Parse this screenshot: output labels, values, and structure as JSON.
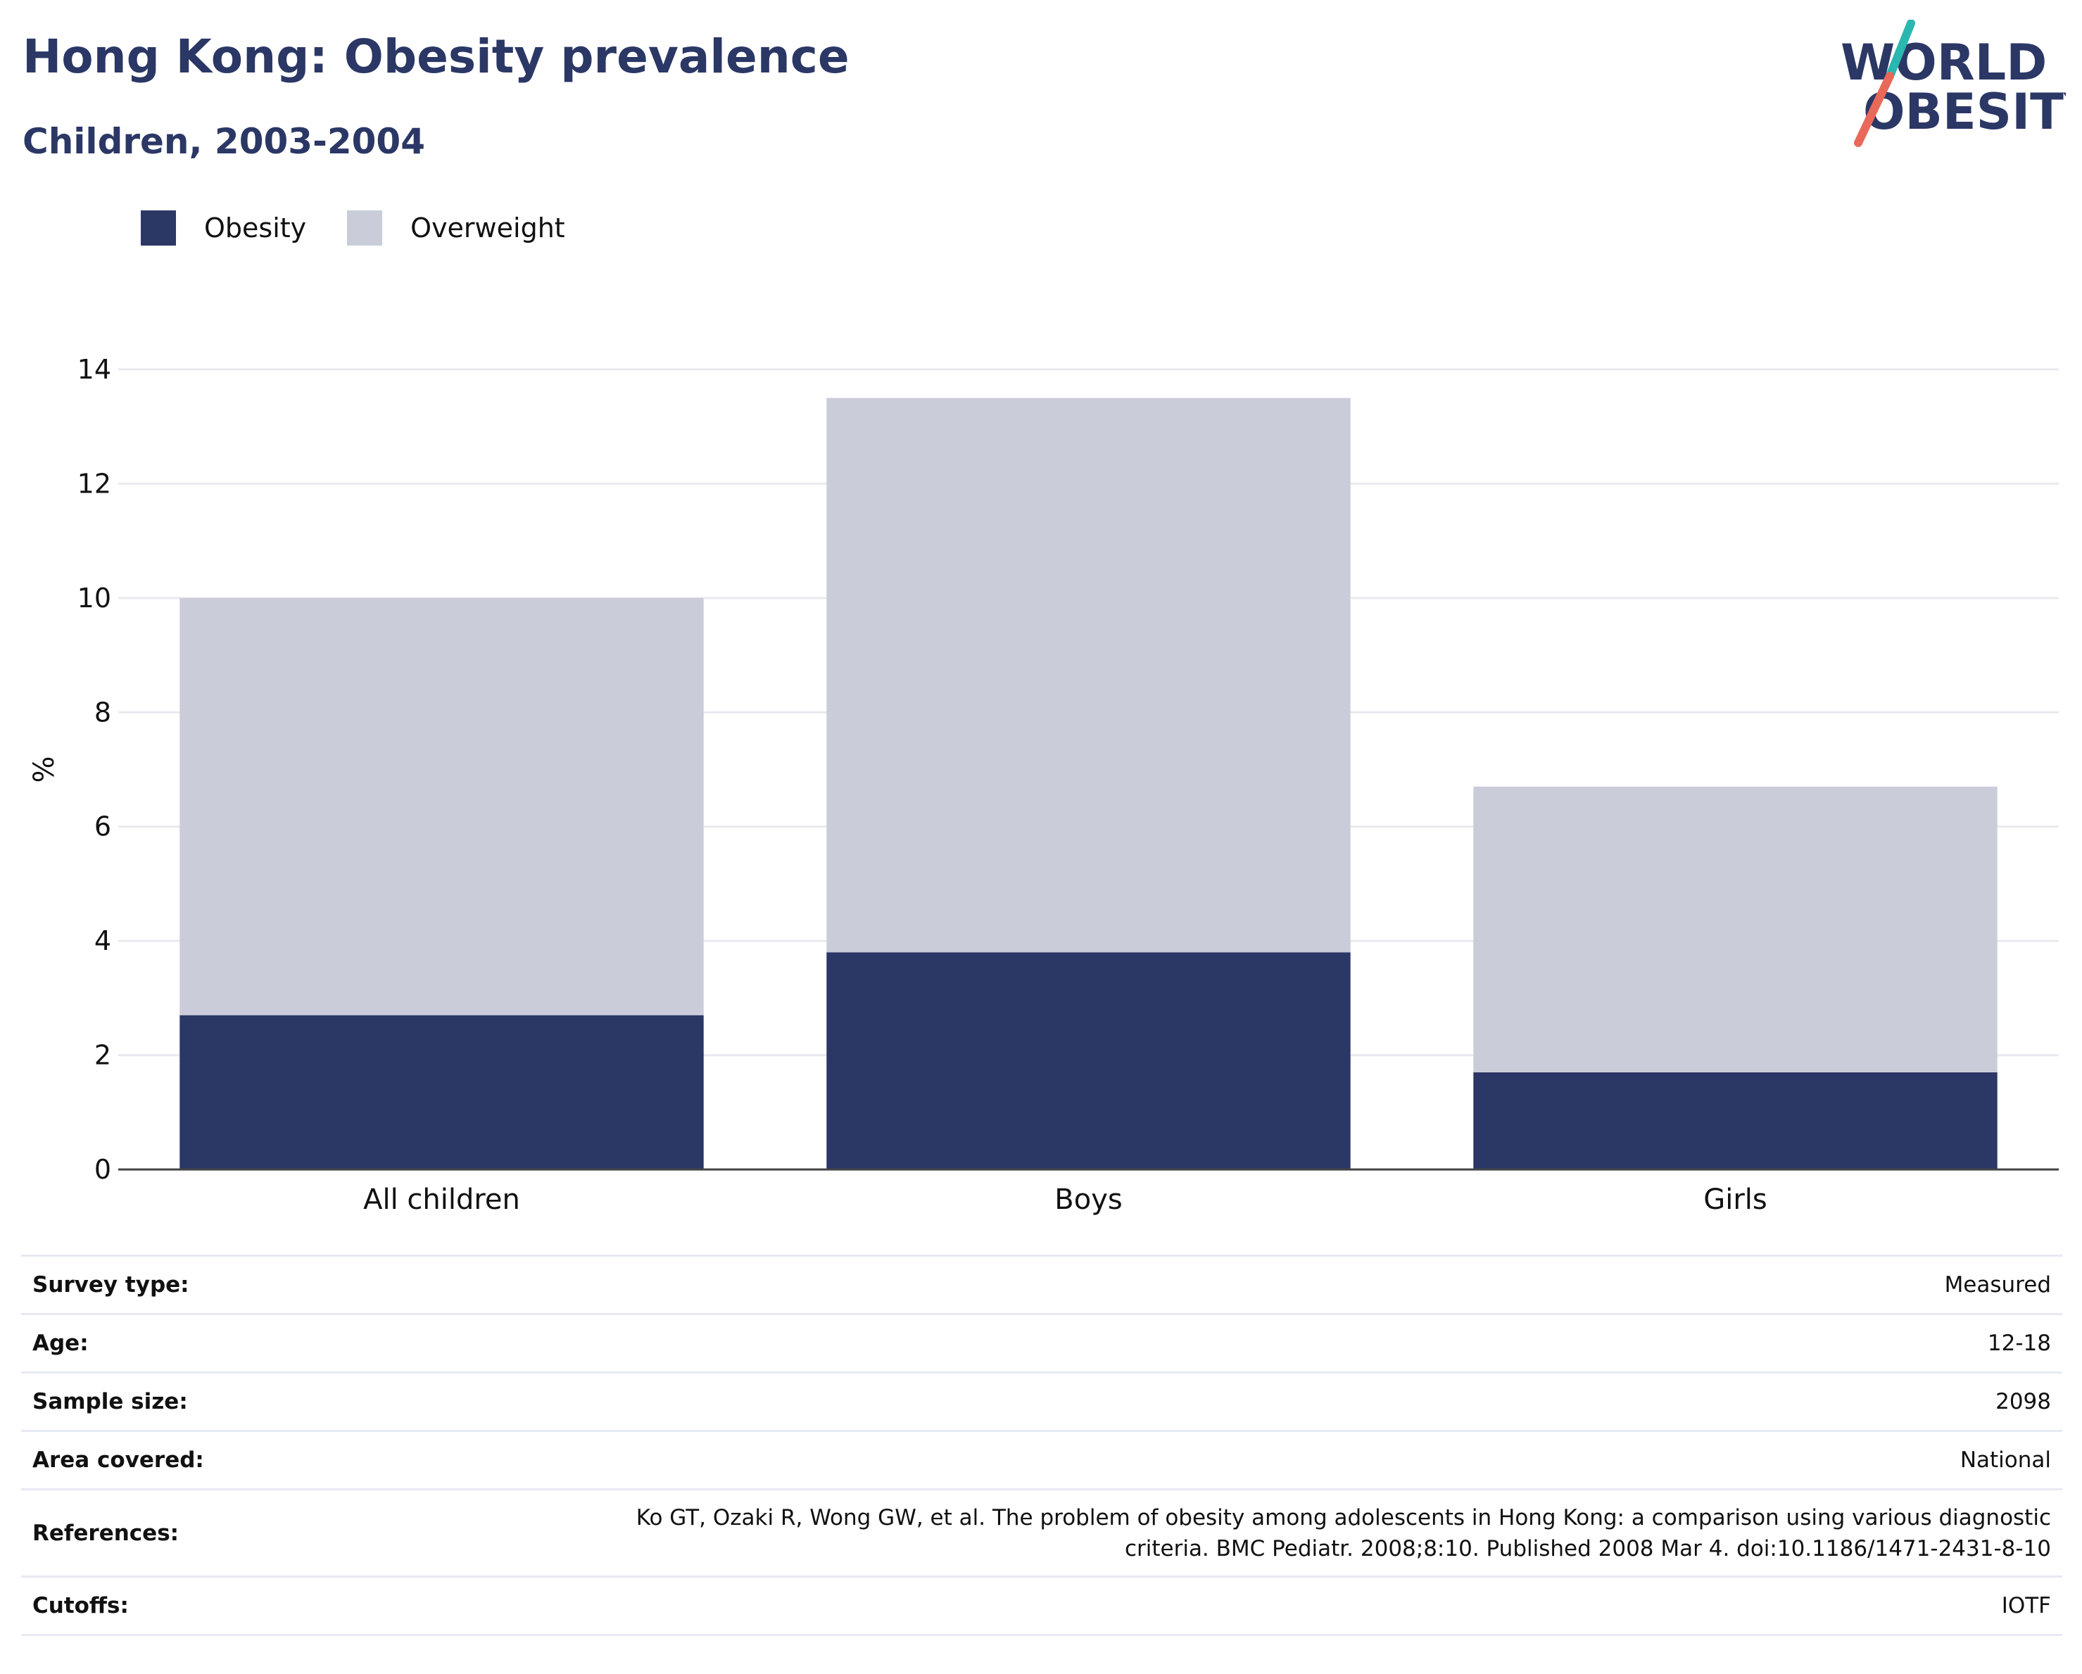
{
  "title": "Hong Kong: Obesity prevalence",
  "subtitle": "Children, 2003-2004",
  "logo": {
    "line1": "WORLD",
    "line2": "OBESITY",
    "colors": {
      "text": "#2b3765",
      "slash_top": "#2ab7b0",
      "slash_bottom": "#e8695a"
    }
  },
  "colors": {
    "obesity": "#2b3765",
    "overweight": "#cacdd9",
    "grid": "#e9eaf0",
    "axis": "#444444",
    "text_dark": "#2b3765"
  },
  "legend": [
    {
      "label": "Obesity",
      "color": "#2b3765"
    },
    {
      "label": "Overweight",
      "color": "#cacdd9"
    }
  ],
  "chart_data": {
    "type": "bar",
    "stacked": true,
    "categories": [
      "All children",
      "Boys",
      "Girls"
    ],
    "series": [
      {
        "name": "Obesity",
        "values": [
          2.7,
          3.8,
          1.7
        ],
        "color": "#2b3765"
      },
      {
        "name": "Overweight",
        "values": [
          7.3,
          9.7,
          5.0
        ],
        "color": "#cacdd9"
      }
    ],
    "ylabel": "%",
    "xlabel": "",
    "ylim": [
      0,
      14
    ],
    "yticks": [
      0,
      2,
      4,
      6,
      8,
      10,
      12,
      14
    ],
    "grid": true,
    "legend_position": "top-left"
  },
  "metadata": [
    {
      "key": "Survey type:",
      "value": "Measured"
    },
    {
      "key": "Age:",
      "value": "12-18"
    },
    {
      "key": "Sample size:",
      "value": "2098"
    },
    {
      "key": "Area covered:",
      "value": "National"
    },
    {
      "key": "References:",
      "value_lines": [
        "Ko GT, Ozaki R, Wong GW, et al. The problem of obesity among adolescents in Hong Kong: a comparison using various diagnostic",
        "criteria. BMC Pediatr. 2008;8:10. Published 2008 Mar 4. doi:10.1186/1471-2431-8-10"
      ]
    },
    {
      "key": "Cutoffs:",
      "value": "IOTF"
    }
  ]
}
